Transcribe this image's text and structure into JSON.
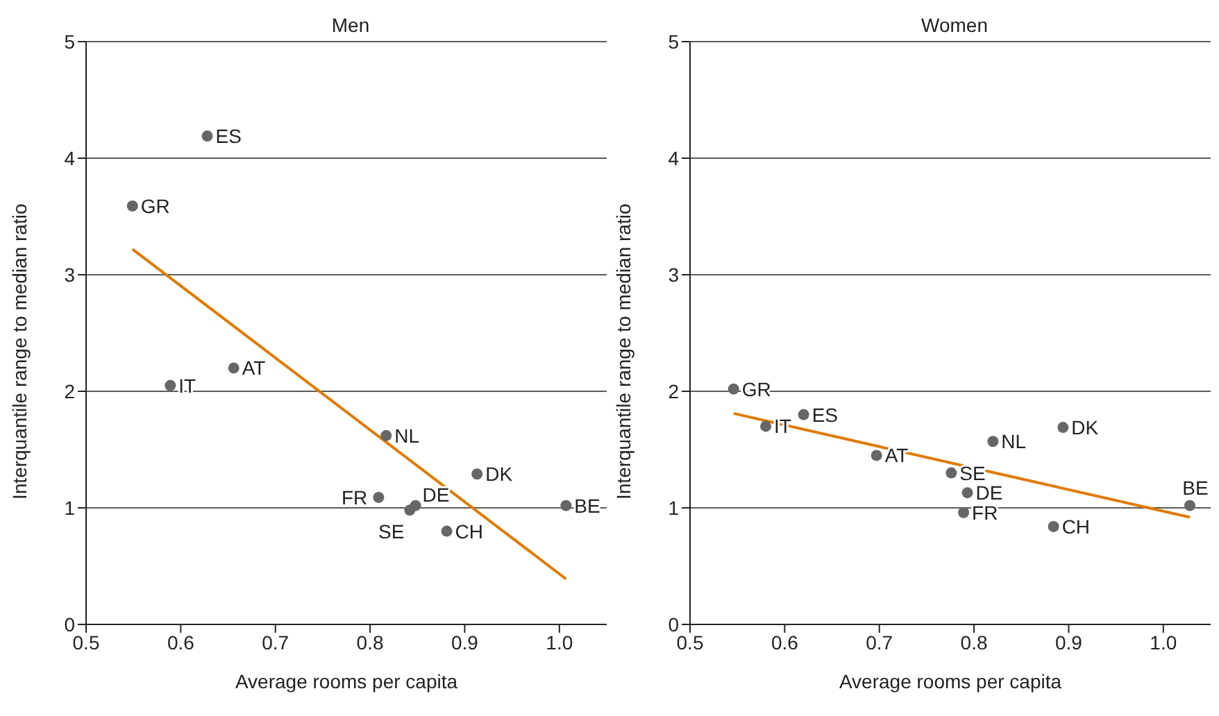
{
  "chart_data": [
    {
      "type": "scatter",
      "title": "Men",
      "xlabel": "Average rooms per capita",
      "ylabel": "Interquantile range to median ratio",
      "xlim": [
        0.5,
        1.05
      ],
      "xticks": [
        0.5,
        0.6,
        0.7,
        0.8,
        0.9,
        {
          "value": 1.0,
          "label": "1.0"
        }
      ],
      "ylim": [
        0,
        5
      ],
      "yticks": [
        0,
        1,
        2,
        3,
        4,
        5
      ],
      "grid": "y",
      "legend": false,
      "series": [
        {
          "marker": "circle",
          "color": "#666666",
          "x": [
            0.549,
            0.628,
            0.589,
            0.656,
            0.809,
            0.842,
            0.848,
            0.817,
            0.913,
            0.881,
            1.007
          ],
          "values": [
            3.59,
            4.19,
            2.05,
            2.2,
            1.09,
            0.98,
            1.02,
            1.62,
            1.29,
            0.8,
            1.02
          ]
        },
        {
          "type": "line",
          "color": "#e07b00",
          "x": [
            0.549,
            1.007
          ],
          "values": [
            3.22,
            0.39
          ]
        }
      ],
      "annotations": [
        {
          "text": "GR",
          "x": 0.549,
          "y": 3.59
        },
        {
          "text": "ES",
          "x": 0.628,
          "y": 4.19
        },
        {
          "text": "IT",
          "x": 0.589,
          "y": 2.05
        },
        {
          "text": "AT",
          "x": 0.656,
          "y": 2.2
        },
        {
          "text": "FR",
          "x": 0.809,
          "y": 1.09
        },
        {
          "text": "SE",
          "x": 0.842,
          "y": 0.98
        },
        {
          "text": "DE",
          "x": 0.848,
          "y": 1.02
        },
        {
          "text": "NL",
          "x": 0.817,
          "y": 1.62
        },
        {
          "text": "DK",
          "x": 0.913,
          "y": 1.29
        },
        {
          "text": "CH",
          "x": 0.881,
          "y": 0.8
        },
        {
          "text": "BE",
          "x": 1.007,
          "y": 1.02
        }
      ]
    },
    {
      "type": "scatter",
      "title": "Women",
      "xlabel": "Average rooms per capita",
      "ylabel": "Interquantile range to median ratio",
      "xlim": [
        0.5,
        1.05
      ],
      "xticks": [
        0.5,
        0.6,
        0.7,
        0.8,
        0.9,
        {
          "value": 1.0,
          "label": "1.0"
        }
      ],
      "ylim": [
        0,
        5
      ],
      "yticks": [
        0,
        1,
        2,
        3,
        4,
        5
      ],
      "grid": "y",
      "legend": false,
      "series": [
        {
          "marker": "circle",
          "color": "#666666",
          "x": [
            0.546,
            0.58,
            0.62,
            0.697,
            0.776,
            0.793,
            0.789,
            0.82,
            0.894,
            0.884,
            1.028
          ],
          "values": [
            2.02,
            1.7,
            1.8,
            1.45,
            1.3,
            1.13,
            0.96,
            1.57,
            1.69,
            0.84,
            1.02
          ]
        },
        {
          "type": "line",
          "color": "#e07b00",
          "x": [
            0.546,
            1.028
          ],
          "values": [
            1.81,
            0.92
          ]
        }
      ],
      "annotations": [
        {
          "text": "GR",
          "x": 0.546,
          "y": 2.02
        },
        {
          "text": "IT",
          "x": 0.58,
          "y": 1.7
        },
        {
          "text": "ES",
          "x": 0.62,
          "y": 1.8
        },
        {
          "text": "AT",
          "x": 0.697,
          "y": 1.45
        },
        {
          "text": "SE",
          "x": 0.776,
          "y": 1.3
        },
        {
          "text": "DE",
          "x": 0.793,
          "y": 1.13
        },
        {
          "text": "FR",
          "x": 0.789,
          "y": 0.96
        },
        {
          "text": "NL",
          "x": 0.82,
          "y": 1.57
        },
        {
          "text": "DK",
          "x": 0.894,
          "y": 1.69
        },
        {
          "text": "CH",
          "x": 0.884,
          "y": 0.84
        },
        {
          "text": "BE",
          "x": 1.028,
          "y": 1.02
        }
      ]
    }
  ]
}
